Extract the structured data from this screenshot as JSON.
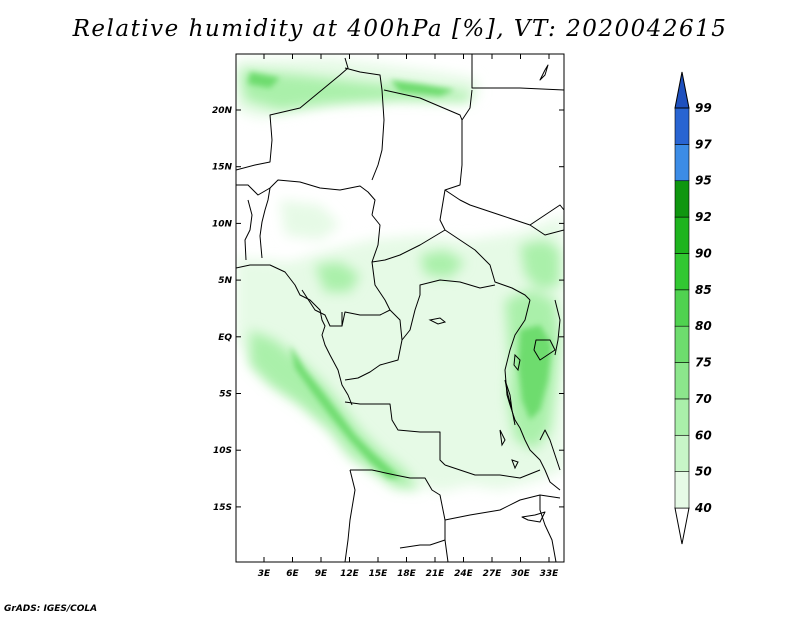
{
  "title": "Relative humidity at 400hPa [%], VT: 2020042615",
  "credit": "GrADS: IGES/COLA",
  "lat_ticks": [
    "20N",
    "15N",
    "10N",
    "5N",
    "EQ",
    "5S",
    "10S",
    "15S"
  ],
  "lon_ticks": [
    "3E",
    "6E",
    "9E",
    "12E",
    "15E",
    "18E",
    "21E",
    "24E",
    "27E",
    "30E",
    "33E"
  ],
  "colorbar": {
    "labels": [
      "40",
      "50",
      "60",
      "70",
      "75",
      "80",
      "85",
      "90",
      "92",
      "95",
      "97",
      "99"
    ],
    "colors": [
      "#ffffff",
      "#e6fae6",
      "#c8f5c8",
      "#aaf0aa",
      "#8ce68c",
      "#6edc6e",
      "#50d250",
      "#32c832",
      "#1eb41e",
      "#0f960f",
      "#3c8ce6",
      "#2864d2",
      "#1e50be"
    ]
  },
  "colors": {
    "land_lines": "#000000",
    "humid_light": "#e6fae6",
    "humid_mid": "#aaf0aa",
    "humid_dark": "#6edc6e"
  }
}
